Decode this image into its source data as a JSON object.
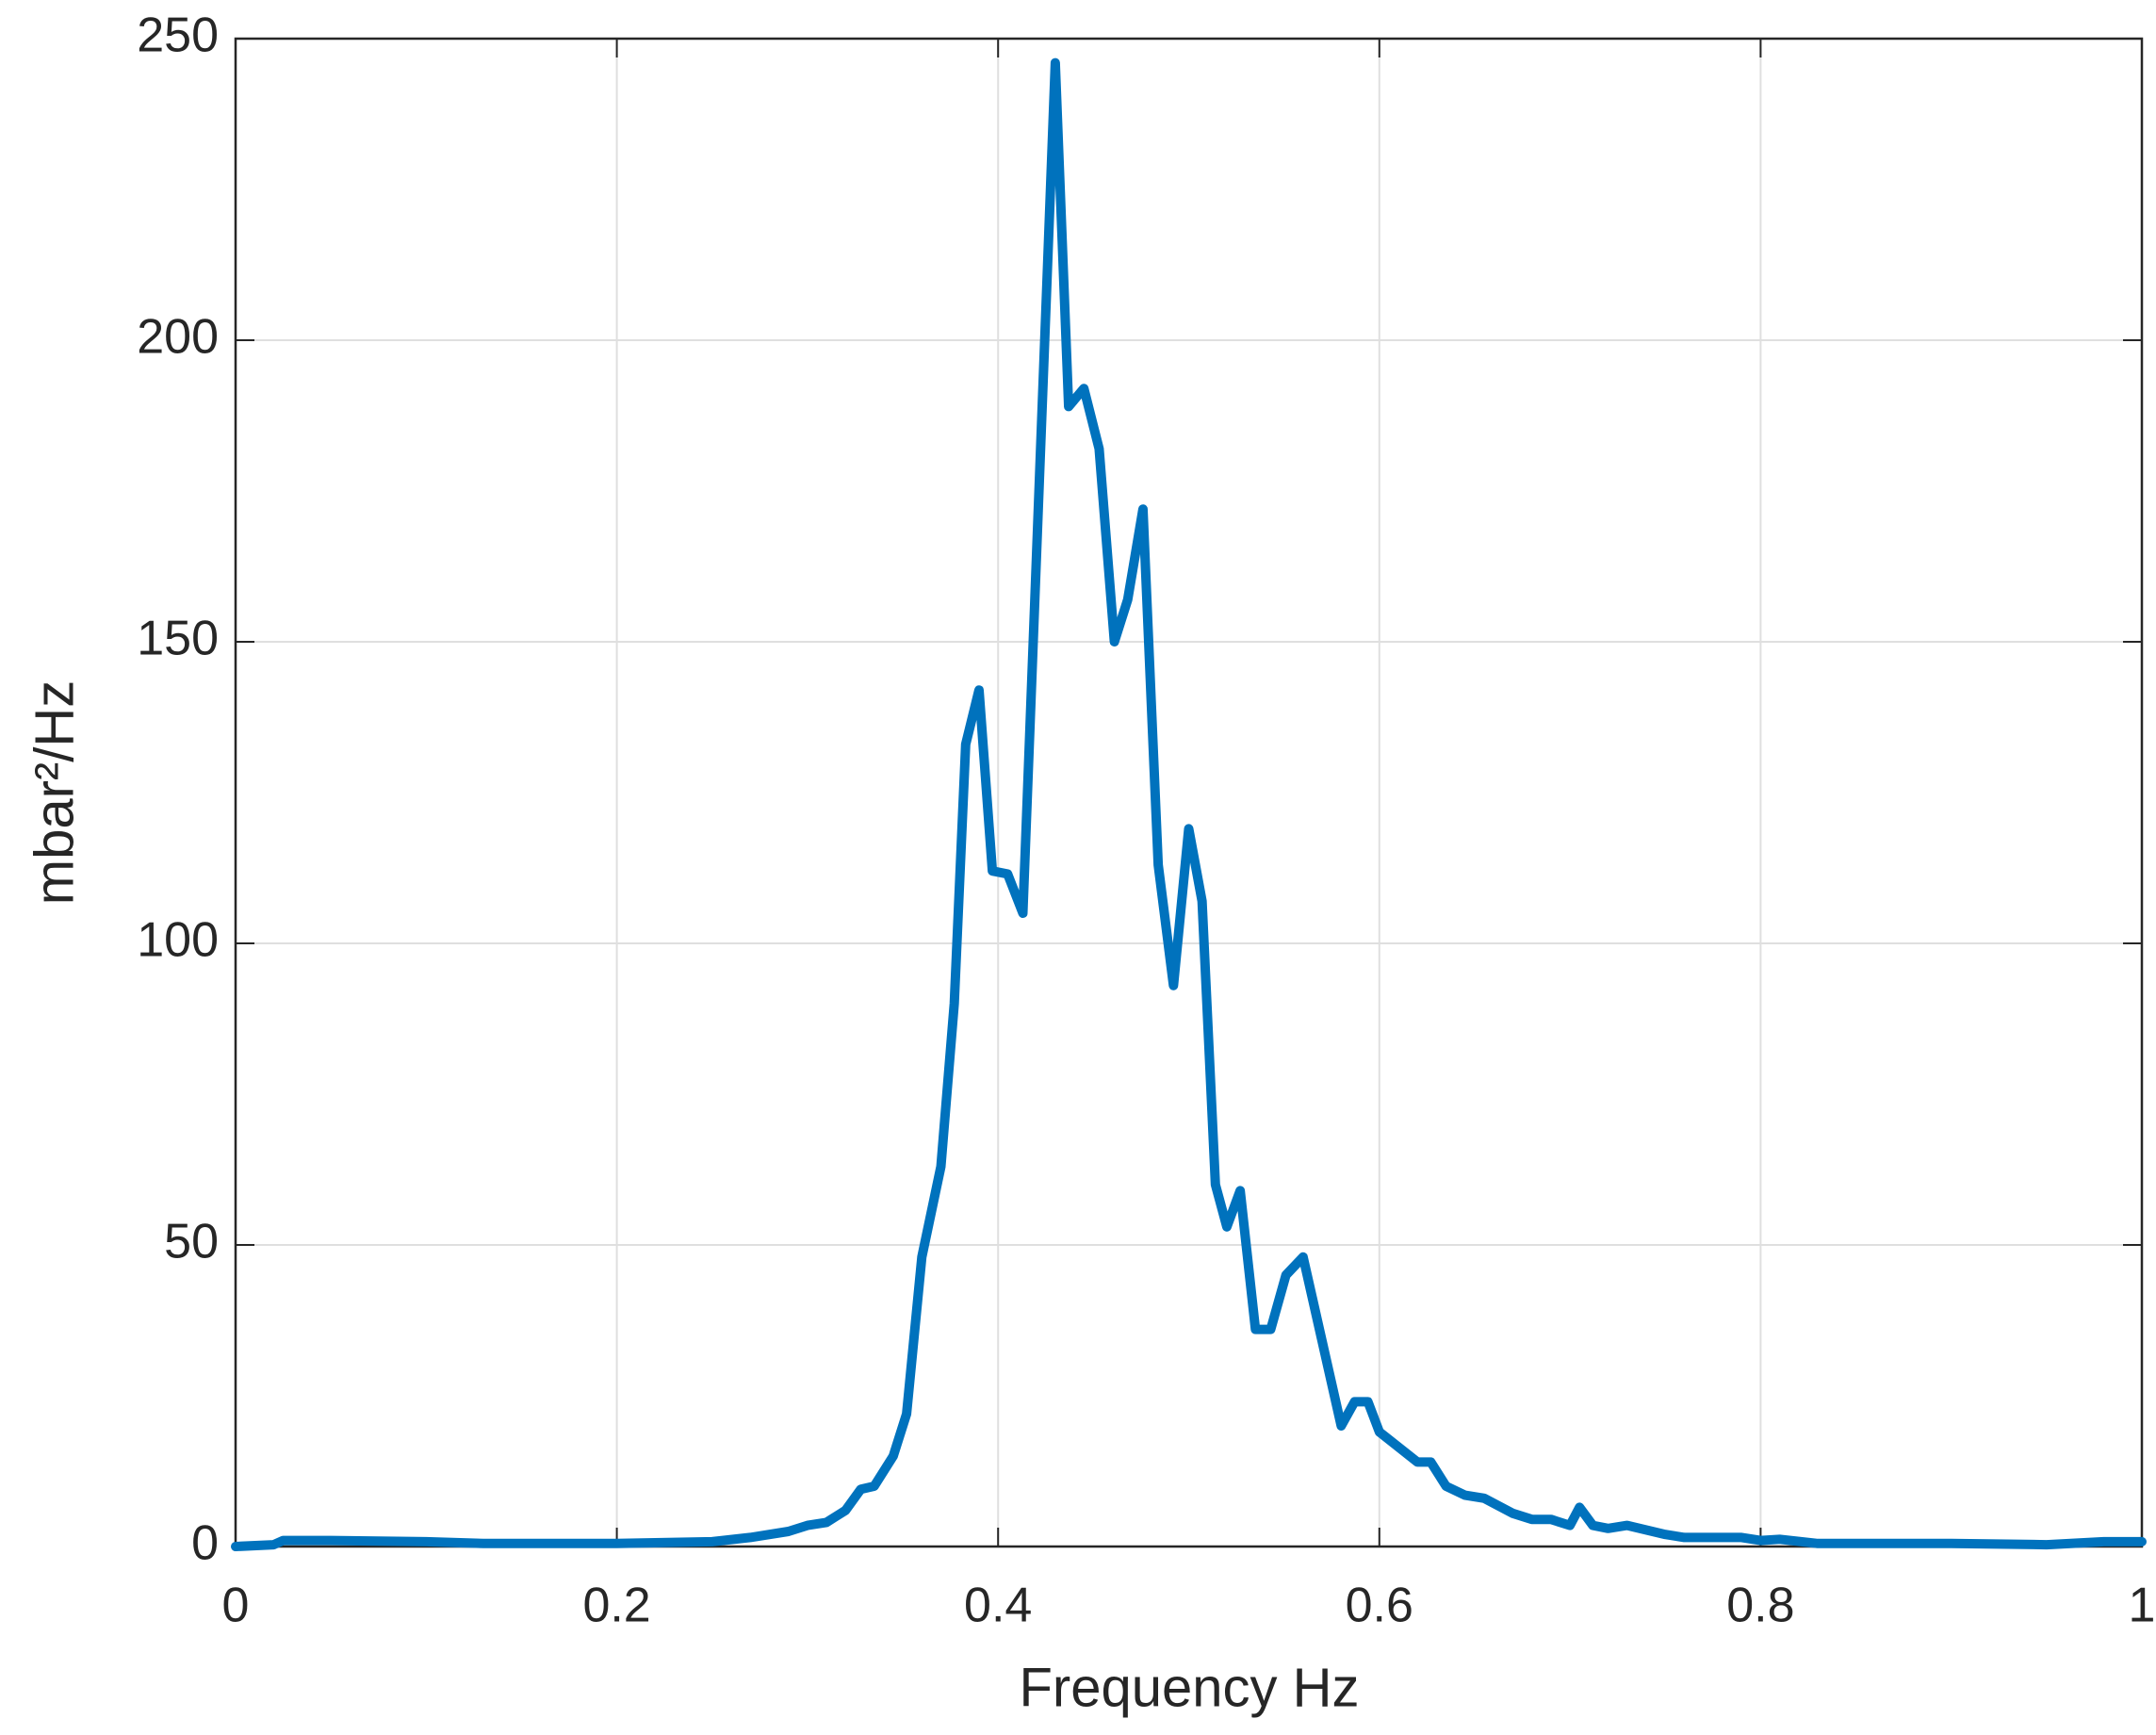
{
  "chart_data": {
    "type": "line",
    "xlabel": "Frequency Hz",
    "ylabel": "mbar²/Hz",
    "xlim": [
      0,
      1
    ],
    "ylim": [
      0,
      250
    ],
    "xticks": [
      0,
      0.2,
      0.4,
      0.6,
      0.8,
      1
    ],
    "yticks": [
      0,
      50,
      100,
      150,
      200,
      250
    ],
    "grid": true,
    "series": [
      {
        "color": "#0072bd",
        "x": [
          0,
          0.02,
          0.025,
          0.05,
          0.1,
          0.13,
          0.2,
          0.25,
          0.27,
          0.29,
          0.3,
          0.31,
          0.32,
          0.328,
          0.335,
          0.345,
          0.352,
          0.36,
          0.37,
          0.377,
          0.383,
          0.39,
          0.397,
          0.405,
          0.413,
          0.43,
          0.437,
          0.445,
          0.453,
          0.461,
          0.468,
          0.476,
          0.484,
          0.492,
          0.5,
          0.507,
          0.514,
          0.52,
          0.527,
          0.535,
          0.543,
          0.551,
          0.56,
          0.58,
          0.587,
          0.594,
          0.6,
          0.62,
          0.627,
          0.635,
          0.645,
          0.655,
          0.67,
          0.68,
          0.69,
          0.7,
          0.705,
          0.712,
          0.72,
          0.73,
          0.75,
          0.76,
          0.78,
          0.79,
          0.8,
          0.81,
          0.83,
          0.9,
          0.95,
          0.98,
          1
        ],
        "values": [
          0,
          0.3,
          1,
          1,
          0.8,
          0.5,
          0.5,
          0.8,
          1.5,
          2.5,
          3.5,
          4,
          6,
          9.5,
          10,
          15,
          22,
          48,
          63,
          90,
          133,
          142,
          112,
          111.5,
          105,
          246,
          189,
          192,
          182,
          150,
          157,
          172,
          113,
          93,
          119,
          107,
          60,
          53,
          59,
          36,
          36,
          45,
          48,
          20,
          24,
          24,
          19,
          14,
          14,
          10,
          8.5,
          8,
          5.5,
          4.5,
          4.5,
          3.5,
          6.5,
          3.5,
          3,
          3.5,
          2,
          1.5,
          1.5,
          1.5,
          1,
          1.2,
          0.5,
          0.5,
          0.3,
          0.8,
          0.8
        ]
      }
    ]
  }
}
